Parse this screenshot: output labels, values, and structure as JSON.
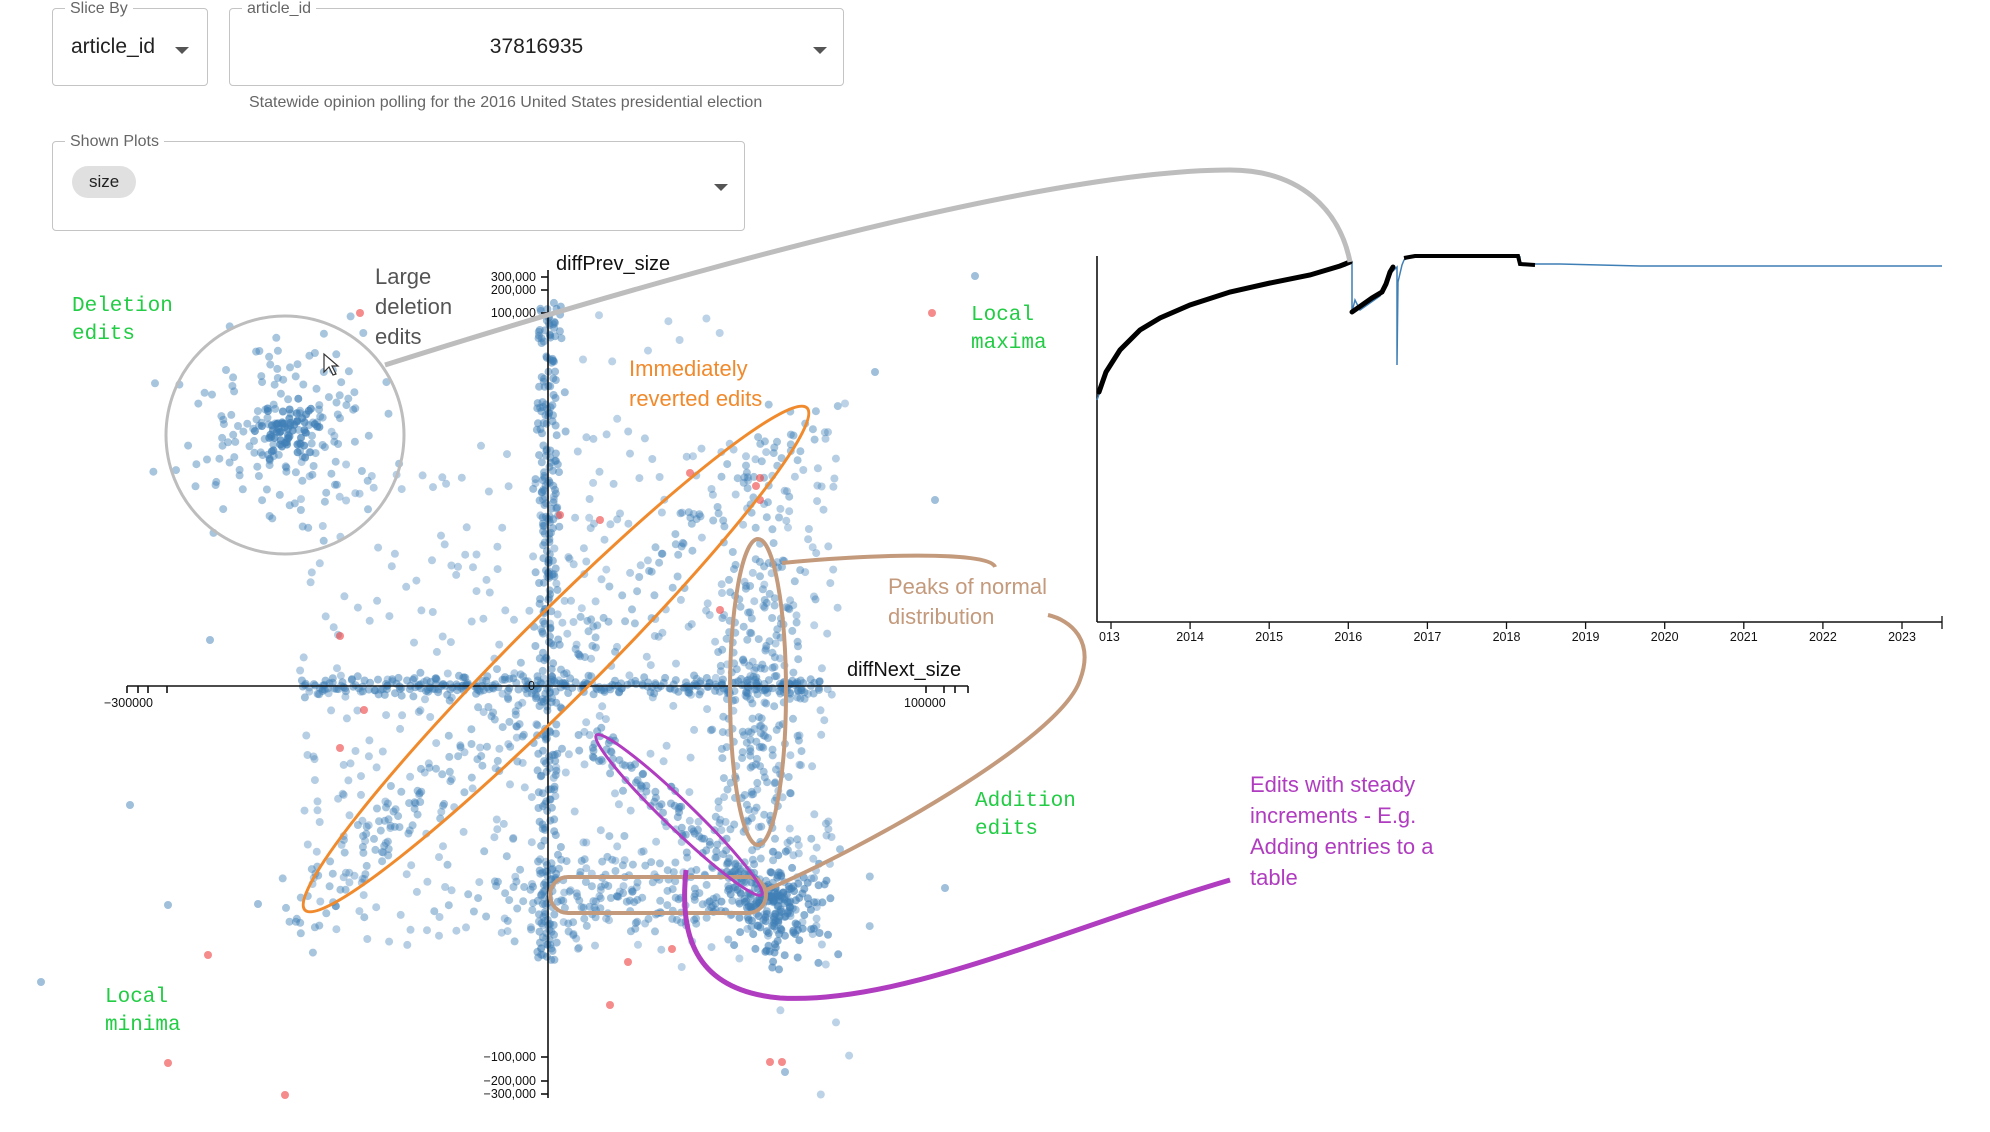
{
  "controls": {
    "slice_by": {
      "legend": "Slice By",
      "value": "article_id"
    },
    "article": {
      "legend": "article_id",
      "value": "37816935",
      "helper": "Statewide opinion polling for the 2016 United States presidential election"
    },
    "shown_plots": {
      "legend": "Shown Plots",
      "chips": [
        "size"
      ]
    }
  },
  "scatter": {
    "x_title": "diffNext_size",
    "y_title": "diffPrev_size",
    "y_ticks_top": [
      "300,000",
      "200,000",
      "100,000"
    ],
    "y_ticks_bottom": [
      "−100,000",
      "−200,000",
      "−300,000"
    ],
    "x_tick_left": "−300000",
    "x_tick_right": "100000",
    "zero": "0"
  },
  "annotations": {
    "deletion": [
      "Deletion",
      "edits"
    ],
    "large_deletion": [
      "Large",
      "deletion",
      "edits"
    ],
    "local_maxima": [
      "Local",
      "maxima"
    ],
    "reverted": [
      "Immediately",
      "reverted edits"
    ],
    "peaks": [
      "Peaks of normal",
      "distribution"
    ],
    "addition": [
      "Addition",
      "edits"
    ],
    "local_minima": [
      "Local",
      "minima"
    ],
    "steady": [
      "Edits with steady",
      "increments - E.g.",
      "Adding entries to a",
      "table"
    ]
  },
  "timeline": {
    "years": [
      "013",
      "2014",
      "2015",
      "2016",
      "2017",
      "2018",
      "2019",
      "2020",
      "2021",
      "2022",
      "2023"
    ]
  },
  "colors": {
    "point": "#3f7fb6",
    "extreme_point": "#ef4444",
    "annotation_green": "#22cc44",
    "annotation_orange": "#f08a2c",
    "annotation_brown": "#c49a7c",
    "annotation_purple": "#b03cc0",
    "annotation_gray": "#bdbdbd"
  }
}
